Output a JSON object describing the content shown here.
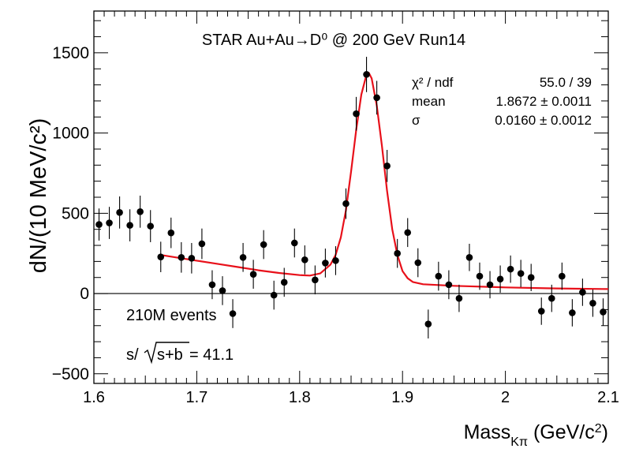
{
  "chart_data": {
    "type": "scatter",
    "title": "STAR Au+Au→D⁰ @ 200 GeV Run14",
    "xlabel": {
      "main": "Mass",
      "sub": "Kπ",
      "unit": " (GeV/c",
      "unit_sup": "2",
      "unit_close": ")"
    },
    "ylabel": "dN/(10 MeV/c²)",
    "xlim": [
      1.6,
      2.1
    ],
    "ylim": [
      -560,
      1760
    ],
    "x_ticks": [
      1.6,
      1.7,
      1.8,
      1.9,
      2.0,
      2.1
    ],
    "x_tick_labels": [
      "1.6",
      "1.7",
      "1.8",
      "1.9",
      "2",
      "2.1"
    ],
    "y_ticks": [
      -500,
      0,
      500,
      1000,
      1500
    ],
    "y_tick_labels": [
      "−500",
      "0",
      "500",
      "1000",
      "1500"
    ],
    "grid": false,
    "zero_line": true,
    "stats": [
      {
        "label": "χ² / ndf",
        "value": "55.0 / 39"
      },
      {
        "label": "mean",
        "value": "1.8672 ± 0.0011"
      },
      {
        "label": "σ",
        "value": "0.0160 ± 0.0012"
      }
    ],
    "annotations": {
      "events": "210M events",
      "significance_prefix": "s/",
      "significance_radicand": "s+b",
      "significance_value": " = 41.1"
    },
    "fit": {
      "color": "#e8101a",
      "x_range": [
        1.665,
        2.1
      ],
      "points": [
        [
          1.665,
          240
        ],
        [
          1.68,
          225
        ],
        [
          1.7,
          205
        ],
        [
          1.72,
          185
        ],
        [
          1.74,
          165
        ],
        [
          1.76,
          145
        ],
        [
          1.78,
          128
        ],
        [
          1.8,
          115
        ],
        [
          1.81,
          112
        ],
        [
          1.82,
          125
        ],
        [
          1.83,
          180
        ],
        [
          1.835,
          240
        ],
        [
          1.84,
          350
        ],
        [
          1.845,
          520
        ],
        [
          1.85,
          760
        ],
        [
          1.855,
          1020
        ],
        [
          1.86,
          1240
        ],
        [
          1.865,
          1365
        ],
        [
          1.8672,
          1375
        ],
        [
          1.87,
          1340
        ],
        [
          1.875,
          1170
        ],
        [
          1.88,
          920
        ],
        [
          1.885,
          640
        ],
        [
          1.89,
          400
        ],
        [
          1.895,
          240
        ],
        [
          1.9,
          140
        ],
        [
          1.905,
          95
        ],
        [
          1.91,
          72
        ],
        [
          1.92,
          58
        ],
        [
          1.95,
          48
        ],
        [
          2.0,
          38
        ],
        [
          2.05,
          32
        ],
        [
          2.1,
          28
        ]
      ]
    },
    "series": [
      {
        "color": "#000000",
        "points": [
          {
            "x": 1.605,
            "y": 430,
            "err": 100
          },
          {
            "x": 1.615,
            "y": 440,
            "err": 100
          },
          {
            "x": 1.625,
            "y": 505,
            "err": 100
          },
          {
            "x": 1.635,
            "y": 425,
            "err": 100
          },
          {
            "x": 1.645,
            "y": 510,
            "err": 100
          },
          {
            "x": 1.655,
            "y": 420,
            "err": 100
          },
          {
            "x": 1.665,
            "y": 228,
            "err": 95
          },
          {
            "x": 1.675,
            "y": 378,
            "err": 95
          },
          {
            "x": 1.685,
            "y": 225,
            "err": 95
          },
          {
            "x": 1.695,
            "y": 220,
            "err": 95
          },
          {
            "x": 1.705,
            "y": 310,
            "err": 95
          },
          {
            "x": 1.715,
            "y": 55,
            "err": 90
          },
          {
            "x": 1.725,
            "y": 18,
            "err": 90
          },
          {
            "x": 1.735,
            "y": -125,
            "err": 90
          },
          {
            "x": 1.745,
            "y": 225,
            "err": 90
          },
          {
            "x": 1.755,
            "y": 120,
            "err": 90
          },
          {
            "x": 1.765,
            "y": 305,
            "err": 90
          },
          {
            "x": 1.775,
            "y": -10,
            "err": 90
          },
          {
            "x": 1.785,
            "y": 70,
            "err": 90
          },
          {
            "x": 1.795,
            "y": 315,
            "err": 90
          },
          {
            "x": 1.805,
            "y": 210,
            "err": 90
          },
          {
            "x": 1.815,
            "y": 85,
            "err": 90
          },
          {
            "x": 1.825,
            "y": 190,
            "err": 90
          },
          {
            "x": 1.835,
            "y": 205,
            "err": 90
          },
          {
            "x": 1.845,
            "y": 560,
            "err": 95
          },
          {
            "x": 1.855,
            "y": 1120,
            "err": 105
          },
          {
            "x": 1.865,
            "y": 1365,
            "err": 110
          },
          {
            "x": 1.875,
            "y": 1220,
            "err": 105
          },
          {
            "x": 1.885,
            "y": 795,
            "err": 100
          },
          {
            "x": 1.895,
            "y": 250,
            "err": 90
          },
          {
            "x": 1.905,
            "y": 380,
            "err": 90
          },
          {
            "x": 1.915,
            "y": 192,
            "err": 90
          },
          {
            "x": 1.925,
            "y": -190,
            "err": 90
          },
          {
            "x": 1.935,
            "y": 108,
            "err": 90
          },
          {
            "x": 1.945,
            "y": 55,
            "err": 90
          },
          {
            "x": 1.955,
            "y": -30,
            "err": 85
          },
          {
            "x": 1.965,
            "y": 225,
            "err": 85
          },
          {
            "x": 1.975,
            "y": 108,
            "err": 85
          },
          {
            "x": 1.985,
            "y": 55,
            "err": 85
          },
          {
            "x": 1.995,
            "y": 90,
            "err": 85
          },
          {
            "x": 2.005,
            "y": 152,
            "err": 85
          },
          {
            "x": 2.015,
            "y": 125,
            "err": 85
          },
          {
            "x": 2.025,
            "y": 100,
            "err": 85
          },
          {
            "x": 2.035,
            "y": -110,
            "err": 85
          },
          {
            "x": 2.045,
            "y": -30,
            "err": 85
          },
          {
            "x": 2.055,
            "y": 108,
            "err": 85
          },
          {
            "x": 2.065,
            "y": -120,
            "err": 85
          },
          {
            "x": 2.075,
            "y": 8,
            "err": 85
          },
          {
            "x": 2.085,
            "y": -60,
            "err": 85
          },
          {
            "x": 2.095,
            "y": -115,
            "err": 85
          }
        ]
      }
    ]
  }
}
